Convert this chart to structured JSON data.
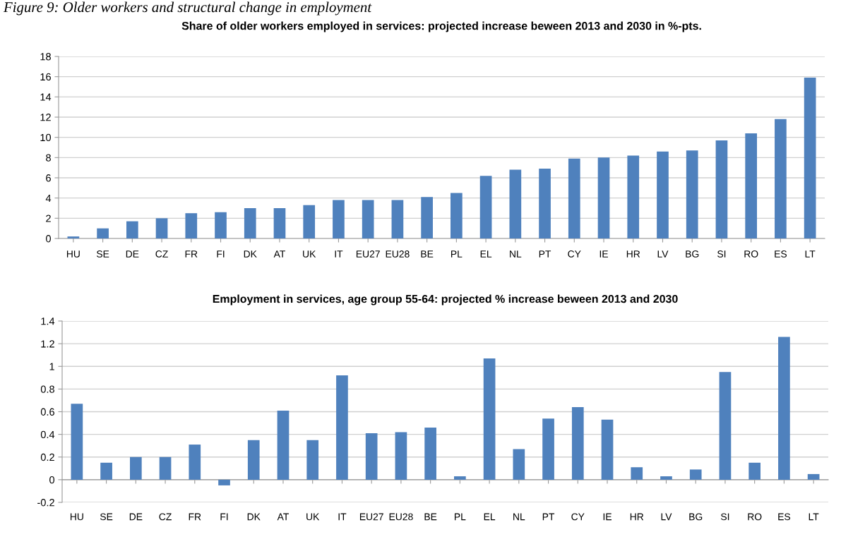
{
  "chart_data": [
    {
      "type": "bar",
      "title": "Share of older workers employed in services: projected increase beween 2013 and 2030 in %-pts.",
      "annotations": [
        "Figure 9: Older workers and structural change in employment"
      ],
      "categories": [
        "HU",
        "SE",
        "DE",
        "CZ",
        "FR",
        "FI",
        "DK",
        "AT",
        "UK",
        "IT",
        "EU27",
        "EU28",
        "BE",
        "PL",
        "EL",
        "NL",
        "PT",
        "CY",
        "IE",
        "HR",
        "LV",
        "BG",
        "SI",
        "RO",
        "ES",
        "LT"
      ],
      "values": [
        0.2,
        1.0,
        1.7,
        2.0,
        2.5,
        2.6,
        3.0,
        3.0,
        3.3,
        3.8,
        3.8,
        3.8,
        4.1,
        4.5,
        6.2,
        6.8,
        6.9,
        7.9,
        8.0,
        8.2,
        8.6,
        8.7,
        9.7,
        10.4,
        11.8,
        15.9
      ],
      "color": "#4f81bd",
      "ylim": [
        0,
        18
      ],
      "yticks": [
        0,
        2,
        4,
        6,
        8,
        10,
        12,
        14,
        16,
        18
      ],
      "grid": "y"
    },
    {
      "type": "bar",
      "title": "Employment in services, age group 55-64: projected % increase beween 2013 and 2030",
      "categories": [
        "HU",
        "SE",
        "DE",
        "CZ",
        "FR",
        "FI",
        "DK",
        "AT",
        "UK",
        "IT",
        "EU27",
        "EU28",
        "BE",
        "PL",
        "EL",
        "NL",
        "PT",
        "CY",
        "IE",
        "HR",
        "LV",
        "BG",
        "SI",
        "RO",
        "ES",
        "LT"
      ],
      "values": [
        0.67,
        0.15,
        0.2,
        0.2,
        0.31,
        -0.05,
        0.35,
        0.61,
        0.35,
        0.92,
        0.41,
        0.42,
        0.46,
        0.03,
        1.07,
        0.27,
        0.54,
        0.64,
        0.53,
        0.11,
        0.03,
        0.09,
        0.95,
        0.15,
        1.26,
        0.05
      ],
      "color": "#4f81bd",
      "ylim": [
        -0.2,
        1.4
      ],
      "yticks": [
        {
          "value": -0.2,
          "label": "-0.2"
        },
        0,
        0.2,
        0.4,
        0.6,
        0.8,
        1,
        1.2,
        1.4
      ],
      "grid": "y"
    }
  ]
}
